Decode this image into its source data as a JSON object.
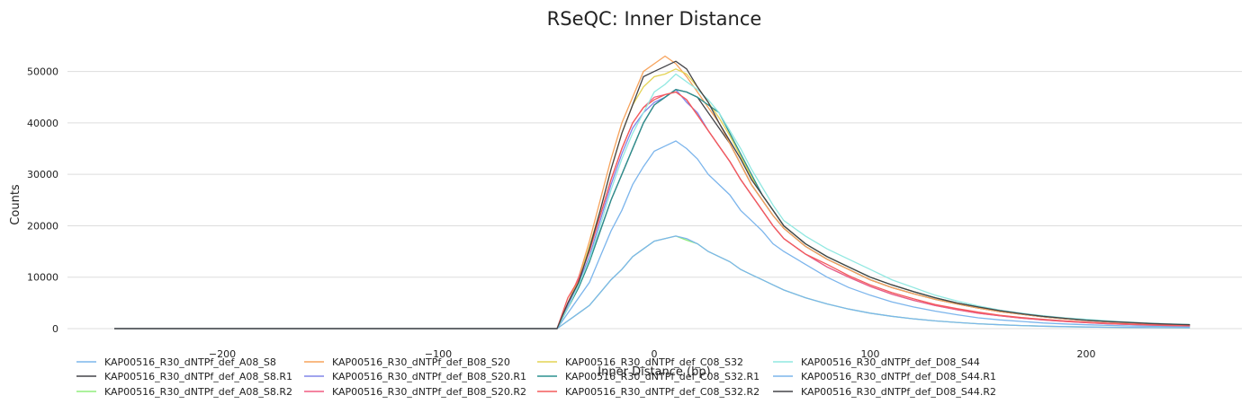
{
  "chart_data": {
    "type": "line",
    "title": "RSeQC: Inner Distance",
    "xlabel": "Inner Distance (bp)",
    "ylabel": "Counts",
    "xlim": [
      -250,
      250
    ],
    "ylim": [
      0,
      52000
    ],
    "xticks": [
      -200,
      -100,
      0,
      100,
      200
    ],
    "xtick_labels": [
      "−200",
      "−100",
      "0",
      "100",
      "200"
    ],
    "yticks": [
      0,
      10000,
      20000,
      30000,
      40000,
      50000
    ],
    "ytick_labels": [
      "0",
      "10000",
      "20000",
      "30000",
      "40000",
      "50000"
    ],
    "grid": true,
    "legend_position": "bottom",
    "x": [
      -250,
      -45,
      -40,
      -35,
      -30,
      -25,
      -20,
      -15,
      -10,
      -5,
      0,
      5,
      10,
      15,
      20,
      25,
      30,
      35,
      40,
      45,
      50,
      55,
      60,
      70,
      80,
      90,
      100,
      110,
      120,
      130,
      140,
      150,
      160,
      170,
      180,
      190,
      200,
      210,
      220,
      230,
      240,
      248
    ],
    "series": [
      {
        "name": "KAP00516_R30_dNTPf_def_A08_S8",
        "color": "#7cb5ec",
        "values": [
          0,
          0,
          3000,
          6000,
          9000,
          14000,
          19000,
          23000,
          28000,
          31500,
          34500,
          35500,
          36500,
          35000,
          33000,
          30000,
          28000,
          26000,
          23000,
          21000,
          19000,
          16500,
          15000,
          12500,
          10000,
          8000,
          6500,
          5200,
          4200,
          3400,
          2700,
          2100,
          1700,
          1400,
          1100,
          900,
          750,
          620,
          520,
          450,
          400,
          380
        ]
      },
      {
        "name": "KAP00516_R30_dNTPf_def_A08_S8.R1",
        "color": "#434348",
        "values": [
          0,
          0,
          4000,
          8000,
          13000,
          19000,
          25000,
          30000,
          35000,
          40000,
          43500,
          45000,
          46500,
          46000,
          45000,
          42000,
          39000,
          36000,
          32000,
          28000,
          25000,
          22000,
          19500,
          16000,
          13500,
          11500,
          9500,
          8000,
          6800,
          5700,
          4800,
          4000,
          3300,
          2800,
          2300,
          1900,
          1600,
          1350,
          1150,
          1000,
          850,
          750
        ]
      },
      {
        "name": "KAP00516_R30_dNTPf_def_A08_S8.R2",
        "color": "#90ed7d",
        "values": [
          0,
          0,
          1500,
          3000,
          4500,
          7000,
          9500,
          11500,
          14000,
          15500,
          17000,
          17500,
          18000,
          17200,
          16500,
          15000,
          14000,
          13000,
          11500,
          10500,
          9500,
          8500,
          7500,
          6000,
          4800,
          3800,
          3000,
          2400,
          1900,
          1500,
          1200,
          950,
          750,
          600,
          480,
          390,
          320,
          270,
          230,
          200,
          180,
          160
        ]
      },
      {
        "name": "KAP00516_R30_dNTPf_def_B08_S20",
        "color": "#f7a35c",
        "values": [
          0,
          0,
          5000,
          10000,
          17000,
          25000,
          33000,
          40000,
          45000,
          50000,
          51500,
          53000,
          51500,
          49000,
          46000,
          43000,
          40000,
          36000,
          32000,
          28000,
          25000,
          22000,
          19500,
          16000,
          13500,
          11500,
          9500,
          8000,
          6800,
          5700,
          4800,
          4000,
          3300,
          2800,
          2300,
          1900,
          1600,
          1350,
          1150,
          1000,
          850,
          750
        ]
      },
      {
        "name": "KAP00516_R30_dNTPf_def_B08_S20.R1",
        "color": "#8085e9",
        "values": [
          0,
          0,
          4500,
          9000,
          14000,
          21000,
          28000,
          34000,
          39000,
          42000,
          44000,
          45000,
          46500,
          44000,
          42000,
          38500,
          35500,
          32500,
          29000,
          26000,
          23000,
          20000,
          17500,
          14500,
          12000,
          10000,
          8200,
          6700,
          5500,
          4500,
          3700,
          3000,
          2500,
          2050,
          1700,
          1400,
          1150,
          950,
          800,
          680,
          580,
          520
        ]
      },
      {
        "name": "KAP00516_R30_dNTPf_def_B08_S20.R2",
        "color": "#f15c80",
        "values": [
          0,
          0,
          5000,
          10000,
          15500,
          22000,
          29000,
          35000,
          40000,
          43000,
          45000,
          45500,
          46000,
          44500,
          41500,
          38500,
          35500,
          32500,
          29000,
          26000,
          23000,
          20000,
          17500,
          14500,
          12000,
          10000,
          8200,
          6700,
          5500,
          4500,
          3700,
          3000,
          2500,
          2050,
          1700,
          1400,
          1150,
          950,
          800,
          680,
          580,
          520
        ]
      },
      {
        "name": "KAP00516_R30_dNTPf_def_C08_S32",
        "color": "#e4d354",
        "values": [
          0,
          0,
          5000,
          9500,
          16000,
          23000,
          31000,
          38000,
          43500,
          47000,
          49000,
          49500,
          50500,
          49500,
          47000,
          44000,
          41000,
          37500,
          33500,
          29500,
          26000,
          23000,
          20000,
          16500,
          14000,
          12000,
          10000,
          8500,
          7200,
          6000,
          5000,
          4200,
          3500,
          2900,
          2400,
          2000,
          1650,
          1400,
          1200,
          1000,
          850,
          750
        ]
      },
      {
        "name": "KAP00516_R30_dNTPf_def_C08_S32.R1",
        "color": "#2b908f",
        "values": [
          0,
          0,
          4000,
          8000,
          13000,
          19000,
          25000,
          30000,
          35000,
          40000,
          43500,
          45000,
          46500,
          46000,
          45000,
          43500,
          42000,
          38000,
          34000,
          30000,
          26000,
          23000,
          20000,
          16500,
          14000,
          12000,
          10000,
          8500,
          7200,
          6000,
          5000,
          4200,
          3500,
          2900,
          2400,
          2000,
          1650,
          1400,
          1200,
          1000,
          850,
          750
        ]
      },
      {
        "name": "KAP00516_R30_dNTPf_def_C08_S32.R2",
        "color": "#f45b5b",
        "values": [
          0,
          0,
          6000,
          9500,
          15000,
          22000,
          29000,
          35000,
          40000,
          43000,
          44500,
          45500,
          46000,
          44500,
          41500,
          38500,
          35500,
          32500,
          29000,
          26000,
          23000,
          20000,
          17500,
          14500,
          12500,
          10300,
          8500,
          7000,
          5800,
          4700,
          3900,
          3200,
          2600,
          2150,
          1800,
          1500,
          1250,
          1050,
          900,
          770,
          660,
          580
        ]
      },
      {
        "name": "KAP00516_R30_dNTPf_def_D08_S44",
        "color": "#91e8e1",
        "values": [
          0,
          0,
          4000,
          8500,
          13500,
          20000,
          27000,
          33000,
          38000,
          42000,
          46000,
          47500,
          49500,
          48000,
          46500,
          44500,
          42000,
          38500,
          35000,
          31000,
          27500,
          24000,
          21000,
          18000,
          15500,
          13500,
          11500,
          9500,
          8000,
          6500,
          5400,
          4400,
          3600,
          3000,
          2500,
          2100,
          1800,
          1500,
          1250,
          1050,
          900,
          800
        ]
      },
      {
        "name": "KAP00516_R30_dNTPf_def_D08_S44.R1",
        "color": "#7cb5ec",
        "values": [
          0,
          0,
          1500,
          3000,
          4500,
          7000,
          9500,
          11500,
          14000,
          15500,
          17000,
          17500,
          18000,
          17500,
          16500,
          15000,
          14000,
          13000,
          11500,
          10500,
          9500,
          8500,
          7500,
          6000,
          4800,
          3800,
          3000,
          2400,
          1900,
          1500,
          1200,
          950,
          750,
          600,
          480,
          390,
          320,
          270,
          230,
          200,
          180,
          160
        ]
      },
      {
        "name": "KAP00516_R30_dNTPf_def_D08_S44.R2",
        "color": "#434348",
        "values": [
          0,
          0,
          5000,
          9000,
          15500,
          23000,
          31000,
          38000,
          43500,
          49000,
          50000,
          51000,
          52000,
          50500,
          47000,
          44000,
          40000,
          36500,
          33000,
          29000,
          26000,
          23000,
          20000,
          16500,
          14000,
          12000,
          10000,
          8500,
          7200,
          6000,
          5000,
          4200,
          3500,
          2900,
          2400,
          2000,
          1650,
          1400,
          1200,
          1000,
          850,
          750
        ]
      }
    ]
  }
}
